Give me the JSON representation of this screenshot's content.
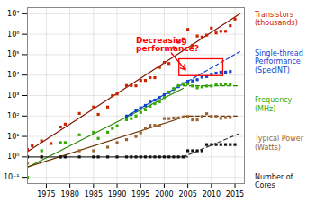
{
  "chart_data": {
    "type": "scatter",
    "log": "y",
    "grid": true,
    "legend": "right",
    "xlim": [
      1971,
      2017
    ],
    "xticks": [
      1975,
      1980,
      1985,
      1990,
      1995,
      2000,
      2005,
      2010,
      2015
    ],
    "ylim": [
      0.05,
      20000000.0
    ],
    "yticks": [
      {
        "value": 0.1,
        "label": "10⁻¹"
      },
      {
        "value": 1,
        "label": "10⁰"
      },
      {
        "value": 10,
        "label": "10¹"
      },
      {
        "value": 100,
        "label": "10²"
      },
      {
        "value": 1000,
        "label": "10³"
      },
      {
        "value": 10000,
        "label": "10⁴"
      },
      {
        "value": 100000,
        "label": "10⁵"
      },
      {
        "value": 1000000,
        "label": "10⁶"
      },
      {
        "value": 10000000,
        "label": "10⁷"
      }
    ],
    "series": [
      {
        "name": "Transistors\n(thousands)",
        "color": "#cc2200",
        "marker": "square",
        "x": [
          1971,
          1972,
          1974,
          1976,
          1978,
          1979,
          1982,
          1985,
          1986,
          1988,
          1989,
          1990,
          1992,
          1993,
          1994,
          1995,
          1996,
          1997,
          1998,
          1999,
          2000,
          2001,
          2002,
          2003,
          2004,
          2005,
          2006,
          2007,
          2008,
          2009,
          2010,
          2011,
          2012,
          2013,
          2014,
          2015
        ],
        "values": [
          2.3,
          3.5,
          6,
          4.5,
          29,
          40,
          134,
          275,
          120,
          275,
          1000,
          1200,
          3100,
          3100,
          3000,
          5500,
          5500,
          7500,
          7500,
          24000,
          42000,
          37000,
          220000,
          410000,
          592000,
          1720000,
          291000,
          820000,
          731000,
          904000,
          2000000,
          1160000,
          1400000,
          1400000,
          2600000,
          5500000
        ],
        "trend_lines": [
          {
            "color": "#7a1500",
            "line_style": "solid",
            "x": [
              1971,
              2016
            ],
            "values": [
              1.8113,
              9969700
            ]
          }
        ]
      },
      {
        "name": "Single-thread\nPerformance\n(SpecINT)",
        "color": "#1144cc",
        "marker": "square",
        "x": [
          1992,
          1993,
          1994,
          1995,
          1996,
          1997,
          1998,
          1999,
          2000,
          2001,
          2002,
          2003,
          2004,
          2005,
          2006,
          2007,
          2008,
          2009,
          2010,
          2011,
          2012,
          2013,
          2014
        ],
        "values": [
          100,
          120,
          180,
          250,
          330,
          480,
          600,
          800,
          1100,
          1400,
          2000,
          2700,
          3800,
          5000,
          5200,
          6000,
          8000,
          8500,
          11000,
          12500,
          14000,
          14000,
          15000
        ],
        "trend_lines": [
          {
            "color": "#1144cc",
            "line_style": "solid",
            "x": [
              1992,
              2005
            ],
            "values": [
              97.46,
              4996.0
            ]
          },
          {
            "color": "#1144cc",
            "line_style": "dashed",
            "x": [
              2005,
              2016
            ],
            "values": [
              4996.0,
              139761
            ]
          }
        ]
      },
      {
        "name": "Frequency\n(MHz)",
        "color": "#33aa00",
        "marker": "square",
        "x": [
          1971,
          1974,
          1978,
          1979,
          1982,
          1985,
          1986,
          1988,
          1989,
          1990,
          1992,
          1993,
          1994,
          1995,
          1996,
          1997,
          1998,
          1999,
          2000,
          2001,
          2002,
          2003,
          2004,
          2005,
          2006,
          2007,
          2008,
          2009,
          2010,
          2011,
          2012,
          2013,
          2014
        ],
        "values": [
          0.1,
          2,
          5,
          5,
          12,
          16,
          8,
          16,
          25,
          33,
          66,
          75,
          100,
          150,
          200,
          300,
          400,
          500,
          800,
          1500,
          2200,
          3060,
          3600,
          3800,
          2933,
          2400,
          2660,
          2930,
          2933,
          3600,
          3400,
          3600,
          3500
        ],
        "trend_lines": [
          {
            "color": "#228800",
            "line_style": "solid",
            "x": [
              1971,
              2004
            ],
            "values": [
              0.30552,
              2252.4
            ]
          },
          {
            "color": "#228800",
            "line_style": "dashed",
            "x": [
              2004,
              2016
            ],
            "values": [
              3000,
              3000
            ]
          }
        ]
      },
      {
        "name": "Typical Power\n(Watts)",
        "color": "#996633",
        "marker": "square",
        "x": [
          1971,
          1974,
          1978,
          1982,
          1985,
          1988,
          1990,
          1992,
          1994,
          1995,
          1996,
          1997,
          1998,
          1999,
          2000,
          2001,
          2002,
          2003,
          2004,
          2005,
          2006,
          2007,
          2008,
          2009,
          2010,
          2011,
          2012,
          2013,
          2014
        ],
        "values": [
          0.5,
          1,
          1,
          2,
          2,
          3,
          5,
          7,
          10,
          15,
          25,
          35,
          35,
          35,
          75,
          75,
          80,
          82,
          89,
          95,
          65,
          65,
          95,
          130,
          95,
          95,
          77,
          84,
          84
        ],
        "trend_lines": [
          {
            "color": "#663300",
            "line_style": "solid",
            "x": [
              1971,
              2004
            ],
            "values": [
              0.31873,
              86.2
            ]
          },
          {
            "color": "#663300",
            "line_style": "dashed",
            "x": [
              2004,
              2016
            ],
            "values": [
              100,
              100
            ]
          }
        ]
      },
      {
        "name": "Number of\nCores",
        "color": "#111111",
        "marker": "square",
        "x": [
          1971,
          1974,
          1978,
          1979,
          1982,
          1985,
          1986,
          1988,
          1990,
          1992,
          1993,
          1994,
          1995,
          1996,
          1997,
          1998,
          1999,
          2000,
          2001,
          2002,
          2003,
          2004,
          2005,
          2006,
          2007,
          2008,
          2009,
          2010,
          2011,
          2012,
          2013,
          2014,
          2015
        ],
        "values": [
          1,
          1,
          1,
          1,
          1,
          1,
          1,
          1,
          1,
          1,
          1,
          1,
          1,
          1,
          1,
          1,
          1,
          1,
          1,
          1,
          1,
          1,
          2,
          2,
          2,
          2,
          4,
          4,
          4,
          4,
          4,
          4,
          4
        ],
        "trend_lines": [
          {
            "color": "#333333",
            "line_style": "solid",
            "x": [
              1971,
              2005
            ],
            "values": [
              1,
              1
            ]
          },
          {
            "color": "#333333",
            "line_style": "dashed",
            "x": [
              2004,
              2016
            ],
            "values": [
              1,
              14.01322
            ]
          }
        ]
      }
    ],
    "annotations": [
      {
        "text": "Decreasing\nperformance?",
        "x": 1994,
        "y": 300000,
        "color": "red"
      }
    ],
    "arrows": [
      {
        "x1": 2001.5,
        "y1": 120000,
        "x2": 2004.5,
        "y2": 18000,
        "color": "red"
      }
    ],
    "boxes": [
      {
        "x1": 2003.2,
        "y1": 9000,
        "x2": 2012.5,
        "y2": 60000,
        "color": "red"
      }
    ]
  }
}
